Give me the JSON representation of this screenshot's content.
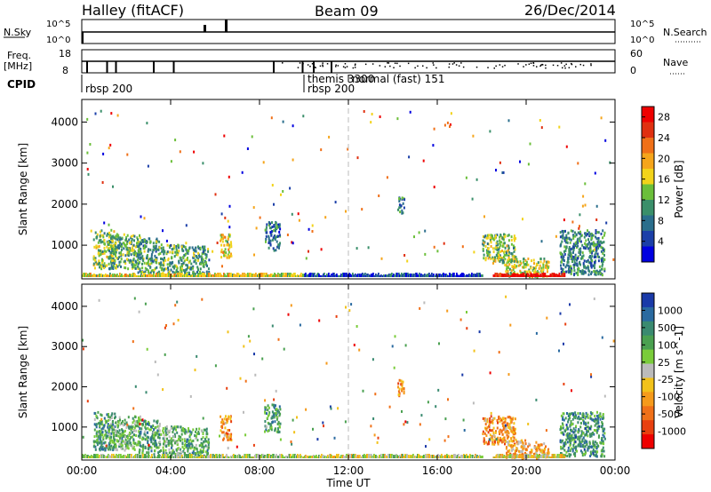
{
  "header": {
    "title": "Halley (fitACF)",
    "beam": "Beam 09",
    "date": "26/Dec/2014"
  },
  "nsky_panel": {
    "left_label": "N.Sky",
    "right_label": "N.Search",
    "left_ticks": [
      "10^5",
      "10^0"
    ],
    "right_ticks": [
      "10^5",
      "10^0"
    ]
  },
  "freq_panel": {
    "left_label_1": "Freq.",
    "left_label_2": "[MHz]",
    "right_label": "Nave",
    "left_ticks": [
      "18",
      "8"
    ],
    "right_ticks": [
      "60",
      "0"
    ]
  },
  "cpid": {
    "label": "CPID",
    "segments": [
      {
        "text": "rbsp 200",
        "start_h": 0.0
      },
      {
        "text": "themis 3300",
        "start_h": 10.0
      },
      {
        "text": "rbsp 200",
        "start_h": 10.0
      },
      {
        "text": "normal (fast) 151",
        "start_h": 12.0
      }
    ]
  },
  "colors": {
    "power_scale": [
      "#0000e0",
      "#1b3fa8",
      "#2a6e8c",
      "#3a8f6a",
      "#6bbf3a",
      "#f2d31a",
      "#f5a51b",
      "#f07018",
      "#e03010",
      "#ee0000"
    ],
    "velocity_scale": [
      "#1a3aa8",
      "#2a6aa0",
      "#3a8a70",
      "#4aa050",
      "#7acc3a",
      "#bbbbbb",
      "#f2c21a",
      "#f59a1b",
      "#f07018",
      "#e84010",
      "#ee0000"
    ],
    "ground_scatter": "#bbbbbb"
  },
  "chart_data": [
    {
      "type": "heatmap",
      "name": "power",
      "ylabel": "Slant Range [km]",
      "xlabel": "Time UT",
      "xlim": [
        0,
        24
      ],
      "ylim": [
        180,
        4550
      ],
      "x_ticks": [
        "00:00",
        "04:00",
        "08:00",
        "12:00",
        "16:00",
        "20:00",
        "00:00"
      ],
      "y_ticks": [
        1000,
        2000,
        3000,
        4000
      ],
      "colorbar_label": "Power [dB]",
      "colorbar_ticks": [
        "4",
        "8",
        "12",
        "16",
        "20",
        "24",
        "28"
      ],
      "colorbar_range": [
        0,
        30
      ],
      "scatter_regions": [
        {
          "t0": 0.5,
          "t1": 1.5,
          "r0": 450,
          "r1": 1400,
          "level": 0.45
        },
        {
          "t0": 1.2,
          "t1": 2.6,
          "r0": 450,
          "r1": 1300,
          "level": 0.4
        },
        {
          "t0": 2.5,
          "t1": 3.5,
          "r0": 350,
          "r1": 1200,
          "level": 0.35
        },
        {
          "t0": 3.5,
          "t1": 4.6,
          "r0": 350,
          "r1": 1050,
          "level": 0.4
        },
        {
          "t0": 4.6,
          "t1": 5.7,
          "r0": 300,
          "r1": 1000,
          "level": 0.35
        },
        {
          "t0": 6.2,
          "t1": 6.7,
          "r0": 700,
          "r1": 1300,
          "level": 0.55
        },
        {
          "t0": 8.2,
          "t1": 8.9,
          "r0": 900,
          "r1": 1600,
          "level": 0.25
        },
        {
          "t0": 14.2,
          "t1": 14.5,
          "r0": 1800,
          "r1": 2200,
          "level": 0.3
        },
        {
          "t0": 18.0,
          "t1": 19.5,
          "r0": 600,
          "r1": 1300,
          "level": 0.45
        },
        {
          "t0": 19.0,
          "t1": 21.0,
          "r0": 250,
          "r1": 700,
          "level": 0.5
        },
        {
          "t0": 21.5,
          "t1": 23.5,
          "r0": 300,
          "r1": 1400,
          "level": 0.3
        }
      ],
      "bottom_band": [
        {
          "t0": 0.0,
          "t1": 10.0,
          "level": 0.55
        },
        {
          "t0": 10.0,
          "t1": 18.0,
          "level": 0.15
        },
        {
          "t0": 18.5,
          "t1": 21.7,
          "level": 0.95
        }
      ]
    },
    {
      "type": "heatmap",
      "name": "velocity",
      "ylabel": "Slant Range [km]",
      "xlabel": "Time UT",
      "xlim": [
        0,
        24
      ],
      "ylim": [
        180,
        4550
      ],
      "x_ticks": [
        "00:00",
        "04:00",
        "08:00",
        "12:00",
        "16:00",
        "20:00",
        "00:00"
      ],
      "y_ticks": [
        1000,
        2000,
        3000,
        4000
      ],
      "colorbar_label": "Velocity [m s^-1]",
      "colorbar_ticks": [
        "1000",
        "500",
        "100",
        "25",
        "-25",
        "-100",
        "-500",
        "-1000"
      ],
      "colorbar_range": [
        -1000,
        1000
      ],
      "scatter_regions": [
        {
          "t0": 0.5,
          "t1": 1.5,
          "r0": 450,
          "r1": 1400,
          "level": 0.3
        },
        {
          "t0": 1.2,
          "t1": 2.6,
          "r0": 450,
          "r1": 1300,
          "level": 0.35
        },
        {
          "t0": 2.5,
          "t1": 3.5,
          "r0": 350,
          "r1": 1200,
          "level": 0.3
        },
        {
          "t0": 3.5,
          "t1": 4.6,
          "r0": 350,
          "r1": 1050,
          "level": 0.35
        },
        {
          "t0": 4.6,
          "t1": 5.7,
          "r0": 300,
          "r1": 1000,
          "level": 0.3
        },
        {
          "t0": 6.2,
          "t1": 6.7,
          "r0": 700,
          "r1": 1300,
          "level": 0.7
        },
        {
          "t0": 8.2,
          "t1": 8.9,
          "r0": 900,
          "r1": 1600,
          "level": 0.3
        },
        {
          "t0": 14.2,
          "t1": 14.5,
          "r0": 1800,
          "r1": 2200,
          "level": 0.75
        },
        {
          "t0": 18.0,
          "t1": 19.5,
          "r0": 600,
          "r1": 1300,
          "level": 0.7
        },
        {
          "t0": 19.0,
          "t1": 21.0,
          "r0": 250,
          "r1": 700,
          "level": 0.65
        },
        {
          "t0": 21.5,
          "t1": 23.5,
          "r0": 300,
          "r1": 1400,
          "level": 0.25
        }
      ],
      "bottom_band": [
        {
          "t0": 0.0,
          "t1": 10.0,
          "level": 0.45
        },
        {
          "t0": 10.0,
          "t1": 18.0,
          "level": 0.5
        },
        {
          "t0": 18.5,
          "t1": 21.7,
          "level": 0.55
        }
      ]
    }
  ]
}
